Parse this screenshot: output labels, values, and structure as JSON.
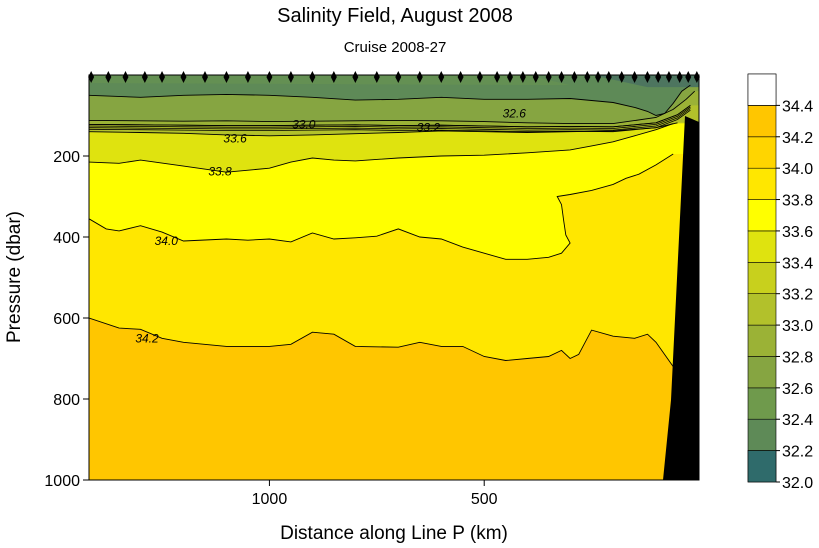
{
  "chart_data": {
    "type": "heatmap",
    "title": "Salinity Field,  August 2008",
    "subtitle": "Cruise 2008-27",
    "xlabel": "Distance along Line P  (km)",
    "ylabel": "Pressure  (dbar)",
    "x_reversed": true,
    "xlim": [
      1420,
      0
    ],
    "ylim": [
      1000,
      0
    ],
    "x_ticks": [
      1000,
      500
    ],
    "y_ticks": [
      200,
      400,
      600,
      800,
      1000
    ],
    "station_distances_km": [
      1415,
      1375,
      1335,
      1290,
      1250,
      1200,
      1150,
      1100,
      1050,
      1000,
      950,
      900,
      850,
      800,
      750,
      700,
      650,
      600,
      555,
      510,
      470,
      440,
      410,
      380,
      350,
      320,
      290,
      260,
      235,
      210,
      180,
      150,
      120,
      95,
      70,
      45,
      25,
      5
    ],
    "colorbar": {
      "levels": [
        32.0,
        32.2,
        32.4,
        32.6,
        32.8,
        33.0,
        33.2,
        33.4,
        33.6,
        33.8,
        34.0,
        34.2,
        34.4
      ],
      "colors": [
        "#2f6b6b",
        "#4d755f",
        "#5e8a57",
        "#6f9a4c",
        "#86a541",
        "#9bb236",
        "#b2c12b",
        "#c8d01d",
        "#dfe30f",
        "#ffff00",
        "#ffe700",
        "#ffd500",
        "#ffc600",
        "#ffffff"
      ]
    },
    "contours": [
      {
        "level": "32.6",
        "depth_dbar": [
          [
            1420,
            50
          ],
          [
            1300,
            55
          ],
          [
            1200,
            50
          ],
          [
            1100,
            48
          ],
          [
            1000,
            50
          ],
          [
            900,
            55
          ],
          [
            800,
            62
          ],
          [
            700,
            60
          ],
          [
            600,
            55
          ],
          [
            500,
            60
          ],
          [
            400,
            60
          ],
          [
            300,
            58
          ],
          [
            200,
            68
          ],
          [
            150,
            80
          ],
          [
            120,
            90
          ],
          [
            100,
            100
          ],
          [
            80,
            95
          ],
          [
            60,
            70
          ],
          [
            40,
            40
          ],
          [
            20,
            25
          ]
        ]
      },
      {
        "level": "33.0",
        "depth_dbar": [
          [
            1420,
            112
          ],
          [
            1300,
            113
          ],
          [
            1200,
            114
          ],
          [
            1100,
            113
          ],
          [
            1000,
            115
          ],
          [
            900,
            114
          ],
          [
            800,
            113
          ],
          [
            700,
            112
          ],
          [
            600,
            113
          ],
          [
            500,
            115
          ],
          [
            400,
            118
          ],
          [
            300,
            120
          ],
          [
            200,
            120
          ],
          [
            100,
            105
          ],
          [
            60,
            85
          ],
          [
            30,
            60
          ],
          [
            10,
            40
          ]
        ]
      },
      {
        "level": "33.2",
        "depth_dbar": [
          [
            1420,
            122
          ],
          [
            1300,
            123
          ],
          [
            1200,
            124
          ],
          [
            1100,
            125
          ],
          [
            1000,
            125
          ],
          [
            900,
            124
          ],
          [
            800,
            123
          ],
          [
            700,
            125
          ],
          [
            600,
            124
          ],
          [
            500,
            126
          ],
          [
            400,
            128
          ],
          [
            300,
            127
          ],
          [
            200,
            128
          ],
          [
            100,
            118
          ],
          [
            50,
            98
          ],
          [
            20,
            75
          ]
        ]
      },
      {
        "level": "33.6",
        "depth_dbar": [
          [
            1420,
            140
          ],
          [
            1300,
            142
          ],
          [
            1200,
            144
          ],
          [
            1100,
            148
          ],
          [
            1000,
            150
          ],
          [
            900,
            148
          ],
          [
            800,
            145
          ],
          [
            700,
            142
          ],
          [
            600,
            138
          ],
          [
            500,
            140
          ],
          [
            400,
            142
          ],
          [
            300,
            140
          ],
          [
            200,
            138
          ],
          [
            100,
            130
          ],
          [
            50,
            118
          ]
        ]
      },
      {
        "level": "33.8",
        "depth_dbar": [
          [
            1420,
            215
          ],
          [
            1350,
            218
          ],
          [
            1300,
            210
          ],
          [
            1200,
            225
          ],
          [
            1100,
            240
          ],
          [
            1000,
            230
          ],
          [
            950,
            215
          ],
          [
            900,
            205
          ],
          [
            850,
            210
          ],
          [
            800,
            212
          ],
          [
            700,
            205
          ],
          [
            600,
            200
          ],
          [
            500,
            198
          ],
          [
            400,
            192
          ],
          [
            300,
            185
          ],
          [
            250,
            175
          ],
          [
            200,
            165
          ],
          [
            150,
            150
          ],
          [
            100,
            135
          ],
          [
            60,
            120
          ]
        ]
      },
      {
        "level": "34.0",
        "depth_dbar": [
          [
            1420,
            355
          ],
          [
            1380,
            380
          ],
          [
            1350,
            385
          ],
          [
            1300,
            372
          ],
          [
            1250,
            388
          ],
          [
            1200,
            410
          ],
          [
            1100,
            405
          ],
          [
            1050,
            408
          ],
          [
            1000,
            405
          ],
          [
            950,
            412
          ],
          [
            900,
            390
          ],
          [
            850,
            405
          ],
          [
            800,
            402
          ],
          [
            750,
            398
          ],
          [
            700,
            380
          ],
          [
            650,
            400
          ],
          [
            600,
            405
          ],
          [
            550,
            425
          ],
          [
            500,
            440
          ],
          [
            450,
            455
          ],
          [
            400,
            455
          ],
          [
            350,
            450
          ],
          [
            320,
            440
          ],
          [
            300,
            415
          ],
          [
            310,
            395
          ],
          [
            315,
            360
          ],
          [
            320,
            320
          ],
          [
            330,
            300
          ],
          [
            300,
            295
          ],
          [
            250,
            285
          ],
          [
            200,
            270
          ],
          [
            170,
            255
          ],
          [
            140,
            245
          ],
          [
            100,
            222
          ],
          [
            60,
            195
          ]
        ]
      },
      {
        "level": "34.2",
        "depth_dbar": [
          [
            1420,
            600
          ],
          [
            1350,
            625
          ],
          [
            1300,
            628
          ],
          [
            1250,
            650
          ],
          [
            1200,
            660
          ],
          [
            1100,
            670
          ],
          [
            1000,
            670
          ],
          [
            950,
            665
          ],
          [
            900,
            635
          ],
          [
            850,
            640
          ],
          [
            800,
            670
          ],
          [
            700,
            672
          ],
          [
            650,
            660
          ],
          [
            600,
            670
          ],
          [
            550,
            670
          ],
          [
            500,
            695
          ],
          [
            450,
            705
          ],
          [
            400,
            700
          ],
          [
            350,
            695
          ],
          [
            320,
            680
          ],
          [
            300,
            700
          ],
          [
            280,
            690
          ],
          [
            250,
            630
          ],
          [
            200,
            645
          ],
          [
            150,
            650
          ],
          [
            120,
            640
          ],
          [
            100,
            660
          ],
          [
            60,
            720
          ],
          [
            40,
            760
          ]
        ]
      }
    ]
  },
  "labels": {
    "title": "Salinity Field,  August 2008",
    "subtitle": "Cruise 2008-27",
    "xlabel": "Distance along Line P  (km)",
    "ylabel": "Pressure  (dbar)"
  }
}
